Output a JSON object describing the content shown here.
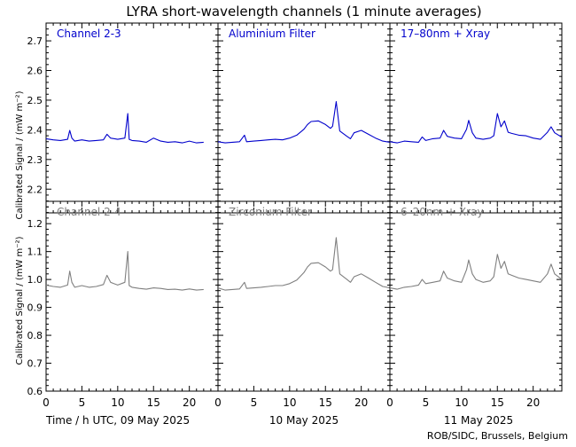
{
  "title": "LYRA short-wavelength channels (1 minute averages)",
  "credit": "ROB/SIDC, Brussels, Belgium",
  "colors": {
    "top_series": "#0000cc",
    "bottom_series": "#7f7f7f",
    "axes": "#000000"
  },
  "xaxis": {
    "label": "Time / h UTC, 09 May 2025",
    "day_labels": [
      "10 May 2025",
      "11 May 2025"
    ],
    "tick_labels": [
      "0",
      "5",
      "10",
      "15",
      "20"
    ]
  },
  "chart_data": [
    {
      "type": "line",
      "panel": "top-left",
      "label": "Channel 2-3",
      "ylabel": "Calibrated Signal / (mW m⁻²)",
      "ylim": [
        2.12,
        2.76
      ],
      "yticks": [
        "2.2",
        "2.3",
        "2.4",
        "2.5",
        "2.6",
        "2.7"
      ],
      "xlim": [
        0,
        24
      ],
      "series": [
        {
          "color": "#0000cc",
          "x": [
            0,
            1,
            2,
            3,
            3.3,
            3.6,
            4,
            5,
            6,
            7,
            8,
            8.5,
            9,
            10,
            11,
            11.4,
            11.6,
            12,
            13,
            14,
            15,
            16,
            17,
            18,
            19,
            20,
            21,
            22
          ],
          "y": [
            2.37,
            2.366,
            2.364,
            2.368,
            2.398,
            2.372,
            2.362,
            2.366,
            2.362,
            2.364,
            2.366,
            2.385,
            2.372,
            2.368,
            2.372,
            2.455,
            2.368,
            2.364,
            2.362,
            2.358,
            2.372,
            2.362,
            2.358,
            2.36,
            2.356,
            2.362,
            2.356,
            2.358
          ]
        }
      ]
    },
    {
      "type": "line",
      "panel": "top-middle",
      "label": "Aluminium Filter",
      "ylim": [
        2.12,
        2.76
      ],
      "xlim": [
        0,
        24
      ],
      "series": [
        {
          "color": "#0000cc",
          "x": [
            0,
            1,
            2,
            3,
            3.7,
            4,
            5,
            6,
            7,
            8,
            9,
            10,
            11,
            12,
            12.5,
            13,
            14,
            15,
            15.7,
            16,
            16.5,
            17,
            18,
            18.5,
            19,
            20,
            21,
            22,
            23,
            24
          ],
          "y": [
            2.36,
            2.356,
            2.358,
            2.36,
            2.382,
            2.36,
            2.362,
            2.364,
            2.366,
            2.368,
            2.366,
            2.372,
            2.382,
            2.402,
            2.418,
            2.428,
            2.43,
            2.418,
            2.405,
            2.412,
            2.495,
            2.396,
            2.378,
            2.37,
            2.39,
            2.398,
            2.385,
            2.372,
            2.362,
            2.358
          ]
        }
      ]
    },
    {
      "type": "line",
      "panel": "top-right",
      "label": "17–80nm + Xray",
      "ylim": [
        2.12,
        2.76
      ],
      "xlim": [
        0,
        24
      ],
      "series": [
        {
          "color": "#0000cc",
          "x": [
            0,
            1,
            2,
            3,
            4,
            4.5,
            5,
            6,
            7,
            7.5,
            8,
            9,
            10,
            10.7,
            11,
            11.5,
            12,
            13,
            14,
            14.5,
            15,
            15.5,
            16,
            16.5,
            17,
            18,
            19,
            20,
            21,
            22,
            22.5,
            23,
            24
          ],
          "y": [
            2.36,
            2.356,
            2.362,
            2.36,
            2.358,
            2.376,
            2.364,
            2.37,
            2.372,
            2.398,
            2.378,
            2.372,
            2.37,
            2.402,
            2.432,
            2.39,
            2.372,
            2.368,
            2.372,
            2.38,
            2.455,
            2.41,
            2.43,
            2.392,
            2.388,
            2.382,
            2.38,
            2.372,
            2.368,
            2.392,
            2.41,
            2.39,
            2.375
          ]
        }
      ]
    },
    {
      "type": "line",
      "panel": "bottom-left",
      "label": "Channel 2-4",
      "ylabel": "Calibrated Signal / (mW m⁻²)",
      "ylim": [
        0.6,
        1.28
      ],
      "yticks": [
        "0.6",
        "0.7",
        "0.8",
        "0.9",
        "1.0",
        "1.1",
        "1.2"
      ],
      "xlim": [
        0,
        24
      ],
      "series": [
        {
          "color": "#7f7f7f",
          "x": [
            0,
            1,
            2,
            3,
            3.3,
            3.6,
            4,
            5,
            6,
            7,
            8,
            8.5,
            9,
            10,
            11,
            11.4,
            11.6,
            12,
            13,
            14,
            15,
            16,
            17,
            18,
            19,
            20,
            21,
            22
          ],
          "y": [
            0.98,
            0.975,
            0.972,
            0.98,
            1.03,
            0.99,
            0.972,
            0.978,
            0.972,
            0.975,
            0.982,
            1.015,
            0.99,
            0.98,
            0.99,
            1.1,
            0.978,
            0.972,
            0.968,
            0.965,
            0.97,
            0.968,
            0.964,
            0.965,
            0.962,
            0.966,
            0.962,
            0.964
          ]
        }
      ]
    },
    {
      "type": "line",
      "panel": "bottom-middle",
      "label": "Zirconium Filter",
      "ylim": [
        0.6,
        1.28
      ],
      "xlim": [
        0,
        24
      ],
      "series": [
        {
          "color": "#7f7f7f",
          "x": [
            0,
            1,
            2,
            3,
            3.7,
            4,
            5,
            6,
            7,
            8,
            9,
            10,
            11,
            12,
            12.5,
            13,
            14,
            15,
            15.7,
            16,
            16.5,
            17,
            18,
            18.5,
            19,
            20,
            21,
            22,
            23,
            24
          ],
          "y": [
            0.97,
            0.962,
            0.964,
            0.966,
            0.99,
            0.968,
            0.97,
            0.972,
            0.975,
            0.978,
            0.978,
            0.985,
            0.998,
            1.025,
            1.045,
            1.058,
            1.06,
            1.045,
            1.03,
            1.035,
            1.15,
            1.02,
            1.0,
            0.99,
            1.01,
            1.02,
            1.005,
            0.99,
            0.975,
            0.97
          ]
        }
      ]
    },
    {
      "type": "line",
      "panel": "bottom-right",
      "label": "6–20nm + Xray",
      "ylim": [
        0.6,
        1.28
      ],
      "xlim": [
        0,
        24
      ],
      "series": [
        {
          "color": "#7f7f7f",
          "x": [
            0,
            1,
            2,
            3,
            4,
            4.5,
            5,
            6,
            7,
            7.5,
            8,
            9,
            10,
            10.7,
            11,
            11.5,
            12,
            13,
            14,
            14.5,
            15,
            15.5,
            16,
            16.5,
            17,
            18,
            19,
            20,
            21,
            22,
            22.5,
            23,
            24
          ],
          "y": [
            0.97,
            0.965,
            0.972,
            0.975,
            0.98,
            1.0,
            0.985,
            0.99,
            0.995,
            1.03,
            1.005,
            0.995,
            0.99,
            1.035,
            1.07,
            1.02,
            1.0,
            0.99,
            0.995,
            1.01,
            1.09,
            1.04,
            1.065,
            1.02,
            1.015,
            1.005,
            1.0,
            0.995,
            0.99,
            1.02,
            1.055,
            1.02,
            1.0
          ]
        }
      ]
    }
  ]
}
